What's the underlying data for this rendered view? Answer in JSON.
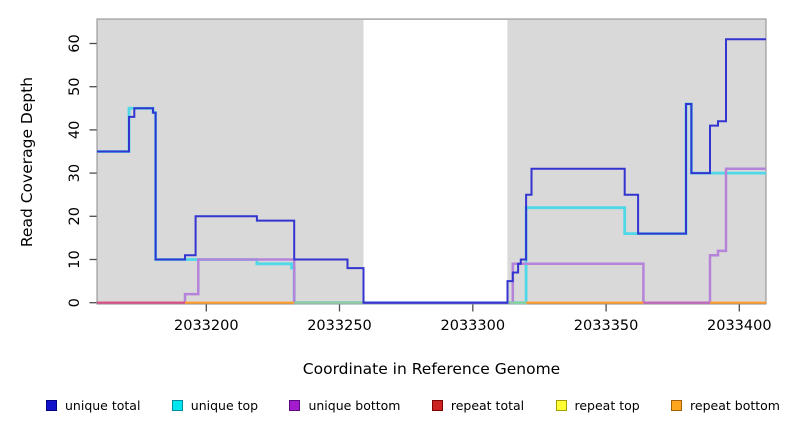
{
  "axes": {
    "x_label": "Coordinate in Reference Genome",
    "y_label": "Read Coverage Depth",
    "x_ticks": [
      2033200,
      2033250,
      2033300,
      2033350,
      2033400
    ],
    "y_ticks": [
      0,
      10,
      20,
      30,
      40,
      50,
      60
    ],
    "x_range": [
      2033159,
      2033410
    ],
    "y_range": [
      0,
      65.6
    ],
    "panel_background": "#d9d9d9",
    "panel_border": "#8a8a8a"
  },
  "chart_data": {
    "type": "line",
    "title": "",
    "xlabel": "Coordinate in Reference Genome",
    "ylabel": "Read Coverage Depth",
    "x_ticks": [
      2033200,
      2033250,
      2033300,
      2033350,
      2033400
    ],
    "y_ticks": [
      0,
      10,
      20,
      30,
      40,
      50,
      60
    ],
    "xlim": [
      2033159,
      2033410
    ],
    "ylim": [
      0,
      65.6
    ],
    "grid": false,
    "legend_position": "bottom",
    "masked_white_region": {
      "from": 2033259,
      "to": 2033313
    },
    "series": [
      {
        "name": "unique total",
        "color": "#3434d0",
        "steps": [
          [
            2033159,
            2033171,
            35
          ],
          [
            2033171,
            2033173,
            43
          ],
          [
            2033173,
            2033180,
            45
          ],
          [
            2033180,
            2033181,
            44
          ],
          [
            2033181,
            2033192,
            10
          ],
          [
            2033192,
            2033196,
            11
          ],
          [
            2033196,
            2033219,
            20
          ],
          [
            2033219,
            2033233,
            19
          ],
          [
            2033233,
            2033253,
            10
          ],
          [
            2033253,
            2033259,
            8
          ],
          [
            2033259,
            2033313,
            0
          ],
          [
            2033313,
            2033315,
            5
          ],
          [
            2033315,
            2033317,
            7
          ],
          [
            2033317,
            2033318,
            9
          ],
          [
            2033318,
            2033320,
            10
          ],
          [
            2033320,
            2033322,
            25
          ],
          [
            2033322,
            2033357,
            31
          ],
          [
            2033357,
            2033362,
            25
          ],
          [
            2033362,
            2033380,
            16
          ],
          [
            2033380,
            2033382,
            46
          ],
          [
            2033382,
            2033389,
            30
          ],
          [
            2033389,
            2033392,
            41
          ],
          [
            2033392,
            2033395,
            42
          ],
          [
            2033395,
            2033410,
            61
          ]
        ]
      },
      {
        "name": "unique top",
        "color": "#4fd8e8",
        "steps": [
          [
            2033159,
            2033171,
            35
          ],
          [
            2033171,
            2033180,
            45
          ],
          [
            2033180,
            2033181,
            44
          ],
          [
            2033181,
            2033219,
            10
          ],
          [
            2033219,
            2033232,
            9
          ],
          [
            2033232,
            2033233,
            8
          ],
          [
            2033233,
            2033320,
            0
          ],
          [
            2033320,
            2033357,
            22
          ],
          [
            2033357,
            2033380,
            16
          ],
          [
            2033380,
            2033382,
            46
          ],
          [
            2033382,
            2033410,
            30
          ]
        ]
      },
      {
        "name": "unique bottom",
        "color": "#b583da",
        "steps": [
          [
            2033159,
            2033192,
            0
          ],
          [
            2033192,
            2033197,
            2
          ],
          [
            2033197,
            2033233,
            10
          ],
          [
            2033233,
            2033315,
            0
          ],
          [
            2033315,
            2033364,
            9
          ],
          [
            2033364,
            2033389,
            0
          ],
          [
            2033389,
            2033392,
            11
          ],
          [
            2033392,
            2033395,
            12
          ],
          [
            2033395,
            2033410,
            31
          ]
        ]
      },
      {
        "name": "repeat total",
        "color": "#d6527c",
        "steps": [
          [
            2033159,
            2033410,
            0
          ]
        ]
      },
      {
        "name": "repeat top",
        "color": "#f5e626",
        "steps": [
          [
            2033159,
            2033410,
            0
          ]
        ]
      },
      {
        "name": "repeat bottom",
        "color": "#ff9d2e",
        "steps": [
          [
            2033159,
            2033410,
            0
          ]
        ]
      }
    ],
    "baseline_visible_segments": [
      {
        "from": 2033159,
        "to": 2033192,
        "color": "#d6527c"
      },
      {
        "from": 2033192,
        "to": 2033233,
        "color": "#ff9d2e"
      },
      {
        "from": 2033233,
        "to": 2033259,
        "color": "#8fd099"
      },
      {
        "from": 2033313,
        "to": 2033320,
        "color": "#8fd099"
      },
      {
        "from": 2033320,
        "to": 2033364,
        "color": "#ff9d2e"
      },
      {
        "from": 2033364,
        "to": 2033389,
        "color": "#c06ab4"
      },
      {
        "from": 2033389,
        "to": 2033410,
        "color": "#ff9d2e"
      }
    ]
  },
  "legend": {
    "items": [
      {
        "label": "unique total",
        "fill": "#1111cc",
        "border": "#000080"
      },
      {
        "label": "unique top",
        "fill": "#00e5ee",
        "border": "#008b9b"
      },
      {
        "label": "unique bottom",
        "fill": "#a21ccb",
        "border": "#5c0a80"
      },
      {
        "label": "repeat total",
        "fill": "#cc2222",
        "border": "#7a0000"
      },
      {
        "label": "repeat top",
        "fill": "#ffff33",
        "border": "#a0a000"
      },
      {
        "label": "repeat bottom",
        "fill": "#ffa51e",
        "border": "#a06000"
      }
    ]
  }
}
